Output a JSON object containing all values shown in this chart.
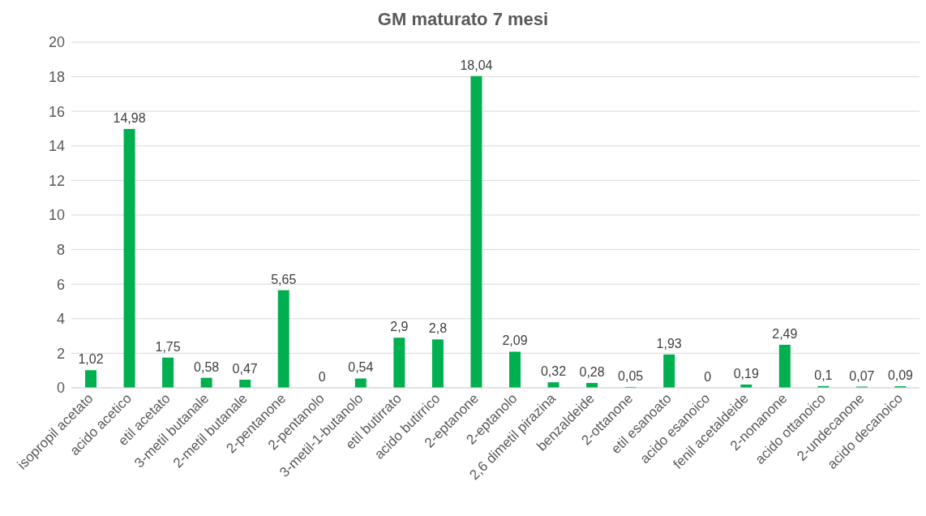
{
  "chart_data": {
    "type": "bar",
    "title": "GM maturato 7 mesi",
    "categories": [
      "isopropil acetato",
      "acido acetico",
      "etil acetato",
      "3-metil butanale",
      "2-metil butanale",
      "2-pentanone",
      "2-pentanolo",
      "3-metil-1-butanolo",
      "etil butirrato",
      "acido butirrico",
      "2-eptanone",
      "2-eptanolo",
      "2,6 dimetil pirazina",
      "benzaldeide",
      "2-ottanone",
      "etil esanoato",
      "acido esanoico",
      "fenil acetaldeide",
      "2-nonanone",
      "acido ottanoico",
      "2-undecanone",
      "acido decanoico"
    ],
    "values": [
      1.02,
      14.98,
      1.75,
      0.58,
      0.47,
      5.65,
      0,
      0.54,
      2.9,
      2.8,
      18.04,
      2.09,
      0.32,
      0.28,
      0.05,
      1.93,
      0,
      0.19,
      2.49,
      0.1,
      0.07,
      0.09
    ],
    "value_labels": [
      "1,02",
      "14,98",
      "1,75",
      "0,58",
      "0,47",
      "5,65",
      "0",
      "0,54",
      "2,9",
      "2,8",
      "18,04",
      "2,09",
      "0,32",
      "0,28",
      "0,05",
      "1,93",
      "0",
      "0,19",
      "2,49",
      "0,1",
      "0,07",
      "0,09"
    ],
    "color": "#00b050",
    "ylim": [
      0,
      20
    ],
    "yticks": [
      0,
      2,
      4,
      6,
      8,
      10,
      12,
      14,
      16,
      18,
      20
    ],
    "grid": "y"
  }
}
